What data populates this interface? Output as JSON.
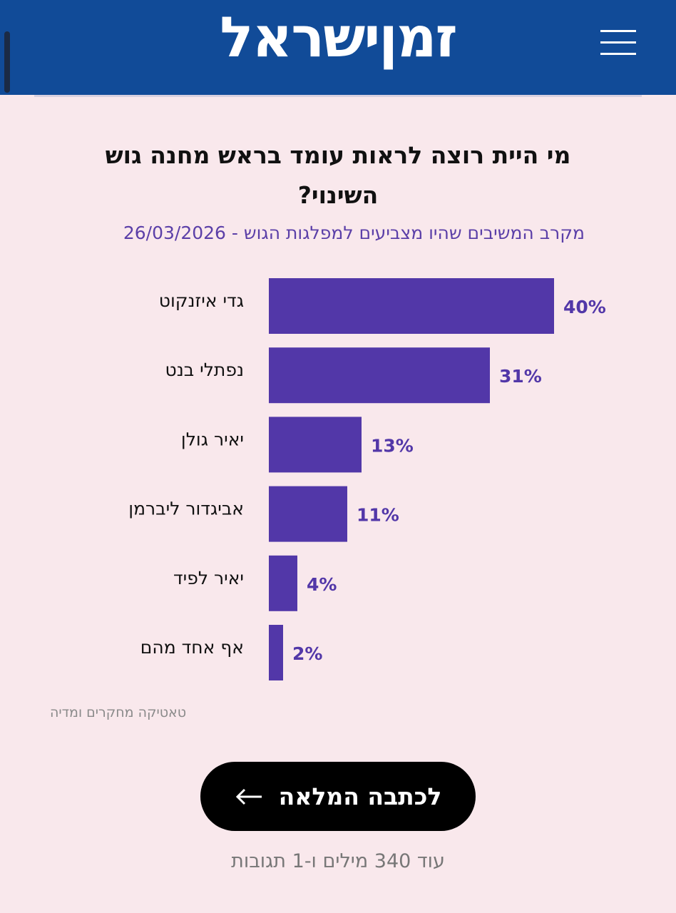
{
  "header": {
    "logo": "זמןישראל"
  },
  "chart_data": {
    "type": "hbar",
    "title": "מי היית רוצה לראות עומד בראש מחנה גוש השינוי?",
    "subtitle": "מקרב המשיבים שהיו מצביעים למפלגות הגוש - 26/03/2026",
    "categories": [
      "גדי איזנקוט",
      "נפתלי בנט",
      "יאיר גולן",
      "אביגדור ליברמן",
      "יאיר לפיד",
      "אף אחד מהם"
    ],
    "values": [
      40,
      31,
      13,
      11,
      4,
      2
    ],
    "value_labels": [
      "40%",
      "31%",
      "13%",
      "11%",
      "4%",
      "2%"
    ],
    "color": "#5237a8",
    "source": "טאטיקה מחקרים ומדיה"
  },
  "button": {
    "label": "לכתבה המלאה"
  },
  "footer": {
    "more": "עוד 340 מילים ו-1 תגובות"
  }
}
